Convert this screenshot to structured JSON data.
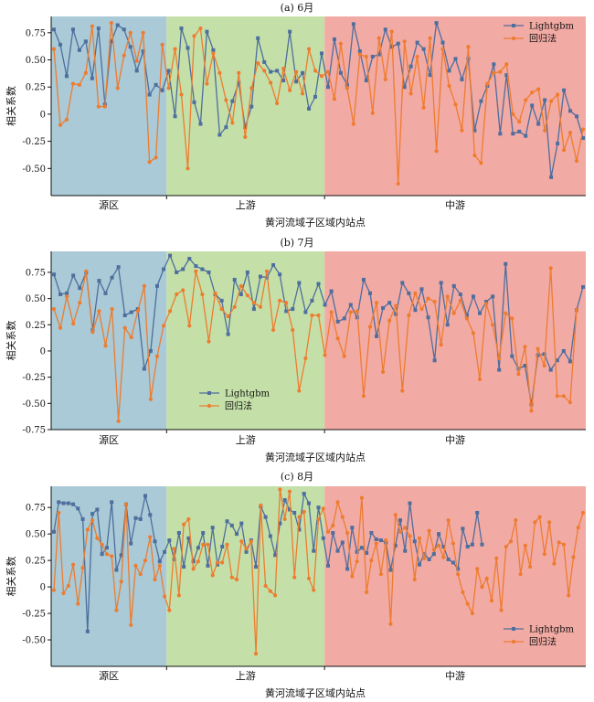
{
  "chart_data": [
    {
      "type": "line",
      "title": "(a) 6月",
      "ylabel": "相关系数",
      "xlabel": "黄河流域子区域内站点",
      "ylim": [
        -0.75,
        0.9
      ],
      "yticks": [
        "0.75",
        "0.50",
        "0.25",
        "0",
        "-0.25",
        "-0.50"
      ],
      "ytick_values": [
        0.75,
        0.5,
        0.25,
        0,
        -0.25,
        -0.5
      ],
      "legend_position": "top-right",
      "regions": [
        {
          "label": "源区",
          "start": 0,
          "end": 19,
          "color": "#a9cad6"
        },
        {
          "label": "上游",
          "start": 19,
          "end": 45,
          "color": "#c4e0a8"
        },
        {
          "label": "中游",
          "start": 45,
          "end": 88,
          "color": "#f2aaa4"
        }
      ],
      "series": [
        {
          "name": "Lightgbm",
          "color": "#4e6e9e",
          "marker": "square",
          "values": [
            0.78,
            0.64,
            0.35,
            0.78,
            0.59,
            0.67,
            0.33,
            0.79,
            0.09,
            0.67,
            0.82,
            0.78,
            0.62,
            0.4,
            0.58,
            0.18,
            0.27,
            0.22,
            0.4,
            -0.02,
            0.79,
            0.61,
            0.11,
            -0.09,
            0.76,
            0.59,
            -0.19,
            -0.12,
            0.12,
            0.29,
            -0.12,
            0.07,
            0.7,
            0.48,
            0.39,
            0.4,
            0.31,
            0.76,
            0.3,
            0.38,
            0.05,
            0.16,
            0.56,
            0.25,
            0.69,
            0.38,
            0.27,
            0.83,
            0.58,
            0.31,
            0.53,
            0.55,
            0.78,
            0.62,
            0.65,
            0.25,
            0.44,
            0.66,
            0.6,
            0.36,
            0.84,
            0.66,
            0.4,
            0.51,
            0.32,
            0.51,
            -0.15,
            0.12,
            0.26,
            0.46,
            -0.18,
            0.36,
            -0.18,
            -0.16,
            -0.2,
            0.08,
            -0.09,
            0.13,
            -0.58,
            -0.27,
            0.22,
            0.03,
            -0.02,
            -0.22
          ]
        },
        {
          "name": "回归法",
          "color": "#ee7c2f",
          "marker": "circle",
          "values": [
            0.6,
            -0.1,
            -0.05,
            0.28,
            0.27,
            0.38,
            0.81,
            0.07,
            0.07,
            0.84,
            0.24,
            0.54,
            0.75,
            0.49,
            0.75,
            -0.44,
            -0.4,
            0.64,
            0.24,
            0.6,
            0.18,
            -0.5,
            0.72,
            0.79,
            0.28,
            0.56,
            0.38,
            0.13,
            -0.08,
            0.38,
            -0.21,
            0.24,
            0.47,
            0.4,
            0.29,
            0.1,
            0.42,
            0.22,
            0.39,
            0.19,
            0.6,
            0.4,
            0.35,
            0.39,
            0.14,
            0.65,
            0.24,
            -0.09,
            0.55,
            0.53,
            0.01,
            0.7,
            0.32,
            0.76,
            -0.64,
            0.67,
            0.19,
            0.53,
            0.06,
            0.7,
            -0.34,
            0.6,
            0.26,
            0.09,
            -0.15,
            0.62,
            -0.38,
            -0.45,
            0.28,
            0.38,
            0.39,
            0.46,
            0.0,
            -0.07,
            0.13,
            0.2,
            0.23,
            -0.15,
            0.12,
            0.18,
            -0.33,
            -0.17,
            -0.43,
            -0.14
          ]
        }
      ]
    },
    {
      "type": "line",
      "title": "(b) 7月",
      "ylabel": "相关系数",
      "xlabel": "黄河流域子区域内站点",
      "ylim": [
        -0.75,
        0.95
      ],
      "yticks": [
        "0.75",
        "0.50",
        "0.25",
        "0",
        "-0.25",
        "-0.50",
        "-0.75"
      ],
      "ytick_values": [
        0.75,
        0.5,
        0.25,
        0,
        -0.25,
        -0.5,
        -0.75
      ],
      "legend_position": "bottom-center",
      "regions": [
        {
          "label": "源区",
          "start": 0,
          "end": 19,
          "color": "#a9cad6"
        },
        {
          "label": "上游",
          "start": 19,
          "end": 45,
          "color": "#c4e0a8"
        },
        {
          "label": "中游",
          "start": 45,
          "end": 88,
          "color": "#f2aaa4"
        }
      ],
      "series": [
        {
          "name": "Lightgbm",
          "color": "#4e6e9e",
          "marker": "square",
          "values": [
            0.73,
            0.54,
            0.55,
            0.72,
            0.6,
            0.75,
            0.2,
            0.67,
            0.55,
            0.7,
            0.8,
            0.34,
            0.37,
            0.4,
            -0.17,
            0.0,
            0.62,
            0.78,
            0.91,
            0.75,
            0.78,
            0.88,
            0.81,
            0.78,
            0.75,
            0.54,
            0.48,
            0.16,
            0.68,
            0.54,
            0.75,
            0.4,
            0.71,
            0.7,
            0.82,
            0.73,
            0.38,
            0.4,
            0.65,
            0.37,
            0.48,
            0.64,
            0.44,
            0.57,
            0.28,
            0.31,
            0.44,
            0.32,
            0.68,
            0.55,
            0.14,
            0.41,
            0.46,
            0.35,
            0.65,
            0.55,
            0.39,
            0.59,
            0.32,
            -0.09,
            0.65,
            0.25,
            0.62,
            0.54,
            0.34,
            0.52,
            0.36,
            0.47,
            0.52,
            -0.18,
            0.83,
            -0.05,
            -0.17,
            -0.14,
            -0.51,
            -0.04,
            -0.03,
            -0.18,
            -0.09,
            0.0,
            -0.1,
            0.39,
            0.61
          ]
        },
        {
          "name": "回归法",
          "color": "#ee7c2f",
          "marker": "circle",
          "values": [
            0.4,
            0.22,
            0.52,
            0.26,
            0.46,
            0.76,
            0.18,
            0.38,
            0.05,
            0.4,
            -0.67,
            0.22,
            0.13,
            0.38,
            0.62,
            -0.46,
            -0.05,
            0.24,
            0.38,
            0.54,
            0.58,
            0.24,
            0.76,
            0.54,
            0.09,
            0.55,
            0.4,
            0.33,
            0.42,
            0.62,
            0.53,
            0.46,
            0.42,
            0.76,
            0.2,
            0.48,
            0.46,
            0.2,
            -0.38,
            -0.07,
            0.34,
            0.34,
            -0.04,
            0.37,
            0.12,
            -0.05,
            0.37,
            0.38,
            -0.43,
            0.23,
            0.46,
            -0.2,
            0.29,
            0.43,
            -0.38,
            0.34,
            0.55,
            0.4,
            0.5,
            0.47,
            0.06,
            0.52,
            0.36,
            0.48,
            0.31,
            0.17,
            -0.27,
            0.45,
            0.25,
            -0.07,
            0.36,
            0.31,
            -0.22,
            0.04,
            -0.57,
            0.02,
            -0.14,
            0.79,
            -0.43,
            -0.43,
            -0.49,
            0.39
          ]
        }
      ]
    },
    {
      "type": "line",
      "title": "(c) 8月",
      "ylabel": "相关系数",
      "xlabel": "黄河流域子区域内站点",
      "ylim": [
        -0.75,
        0.95
      ],
      "yticks": [
        "0.75",
        "0.50",
        "0.25",
        "0",
        "-0.25",
        "-0.50"
      ],
      "ytick_values": [
        0.75,
        0.5,
        0.25,
        0,
        -0.25,
        -0.5
      ],
      "legend_position": "bottom-right",
      "regions": [
        {
          "label": "源区",
          "start": 0,
          "end": 19,
          "color": "#a9cad6"
        },
        {
          "label": "上游",
          "start": 19,
          "end": 45,
          "color": "#c4e0a8"
        },
        {
          "label": "中游",
          "start": 45,
          "end": 88,
          "color": "#f2aaa4"
        }
      ],
      "series": [
        {
          "name": "Lightgbm",
          "color": "#4e6e9e",
          "marker": "square",
          "values": [
            0.52,
            0.8,
            0.79,
            0.79,
            0.78,
            0.74,
            0.64,
            -0.42,
            0.69,
            0.73,
            0.31,
            0.37,
            0.8,
            0.16,
            0.3,
            0.78,
            0.41,
            0.65,
            0.64,
            0.86,
            0.68,
            0.43,
            0.24,
            0.33,
            0.44,
            0.26,
            0.51,
            0.19,
            0.46,
            0.24,
            0.37,
            0.51,
            0.2,
            0.56,
            0.21,
            0.38,
            0.62,
            0.58,
            0.5,
            0.6,
            0.33,
            0.44,
            0.19,
            0.76,
            0.66,
            0.48,
            0.3,
            0.6,
            0.82,
            0.73,
            0.7,
            0.54,
            0.88,
            0.79,
            0.34,
            0.75,
            0.46,
            0.2,
            0.51,
            0.34,
            0.42,
            0.17,
            0.56,
            0.33,
            0.37,
            0.32,
            0.51,
            0.45,
            0.44,
            0.42,
            0.16,
            0.39,
            0.63,
            0.34,
            0.79,
            0.43,
            0.21,
            0.31,
            0.26,
            0.31,
            0.5,
            0.38,
            0.26,
            0.23,
            0.17,
            0.55,
            0.38,
            0.4,
            0.7,
            0.4
          ]
        },
        {
          "name": "回归法",
          "color": "#ee7c2f",
          "marker": "circle",
          "values": [
            -0.03,
            0.7,
            -0.06,
            0.01,
            0.21,
            -0.16,
            0.18,
            0.54,
            0.63,
            0.46,
            0.4,
            0.31,
            0.29,
            -0.22,
            0.05,
            0.78,
            -0.36,
            0.2,
            0.12,
            0.25,
            0.47,
            0.07,
            0.2,
            -0.09,
            -0.22,
            0.36,
            -0.08,
            0.59,
            0.64,
            0.17,
            0.24,
            0.4,
            0.4,
            0.11,
            0.23,
            0.23,
            0.4,
            0.09,
            0.07,
            0.43,
            0.36,
            0.43,
            -0.63,
            0.77,
            0.01,
            -0.04,
            -0.08,
            0.92,
            0.64,
            0.9,
            0.09,
            0.66,
            0.71,
            0.08,
            -0.03,
            0.64,
            0.74,
            0.52,
            0.58,
            0.8,
            0.66,
            0.51,
            0.1,
            0.24,
            0.84,
            -0.05,
            0.25,
            0.41,
            0.12,
            0.44,
            -0.35,
            0.68,
            0.52,
            0.56,
            0.48,
            0.07,
            0.46,
            0.27,
            0.53,
            0.35,
            0.39,
            0.28,
            0.63,
            0.41,
            0.12,
            -0.05,
            -0.16,
            -0.25,
            0.17,
            0.0,
            0.08,
            -0.13,
            0.27,
            -0.22,
            0.38,
            0.43,
            0.63,
            0.12,
            0.39,
            0.19,
            0.61,
            0.66,
            0.31,
            0.61,
            0.22,
            0.42,
            0.4,
            -0.08,
            0.28,
            0.56,
            0.7
          ]
        }
      ]
    }
  ]
}
